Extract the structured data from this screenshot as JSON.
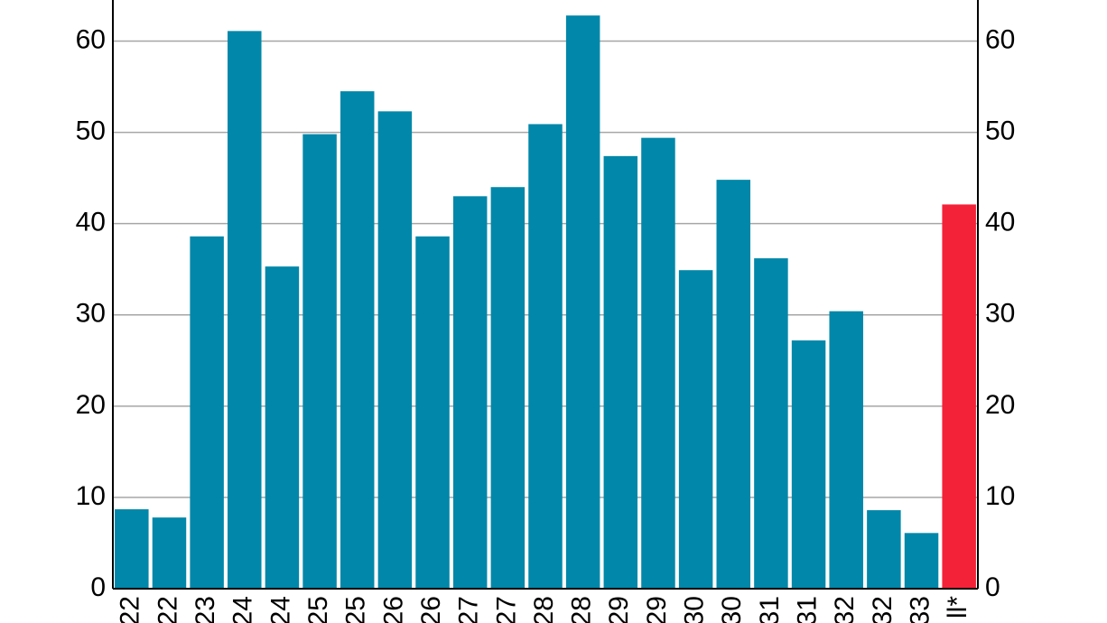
{
  "chart_data": {
    "type": "bar",
    "categories": [
      "22",
      "22",
      "23",
      "24",
      "24",
      "25",
      "25",
      "26",
      "26",
      "27",
      "27",
      "28",
      "28",
      "29",
      "29",
      "30",
      "30",
      "31",
      "31",
      "32",
      "32",
      "33",
      "ll*"
    ],
    "values": [
      8.7,
      7.8,
      38.6,
      61.1,
      35.3,
      49.8,
      54.5,
      52.3,
      38.6,
      43.0,
      44.0,
      50.9,
      62.8,
      47.4,
      49.4,
      34.9,
      44.8,
      36.2,
      27.2,
      30.4,
      8.6,
      6.1,
      42.1
    ],
    "colors": [
      "#0087a9",
      "#0087a9",
      "#0087a9",
      "#0087a9",
      "#0087a9",
      "#0087a9",
      "#0087a9",
      "#0087a9",
      "#0087a9",
      "#0087a9",
      "#0087a9",
      "#0087a9",
      "#0087a9",
      "#0087a9",
      "#0087a9",
      "#0087a9",
      "#0087a9",
      "#0087a9",
      "#0087a9",
      "#0087a9",
      "#0087a9",
      "#0087a9",
      "#f42238"
    ],
    "ylim": [
      0,
      64.5
    ],
    "yticks": [
      0,
      10,
      20,
      30,
      40,
      50,
      60
    ],
    "y2lim": [
      0,
      64.5
    ],
    "y2ticks": [
      0,
      10,
      20,
      30,
      40,
      50,
      60
    ],
    "grid": true
  }
}
